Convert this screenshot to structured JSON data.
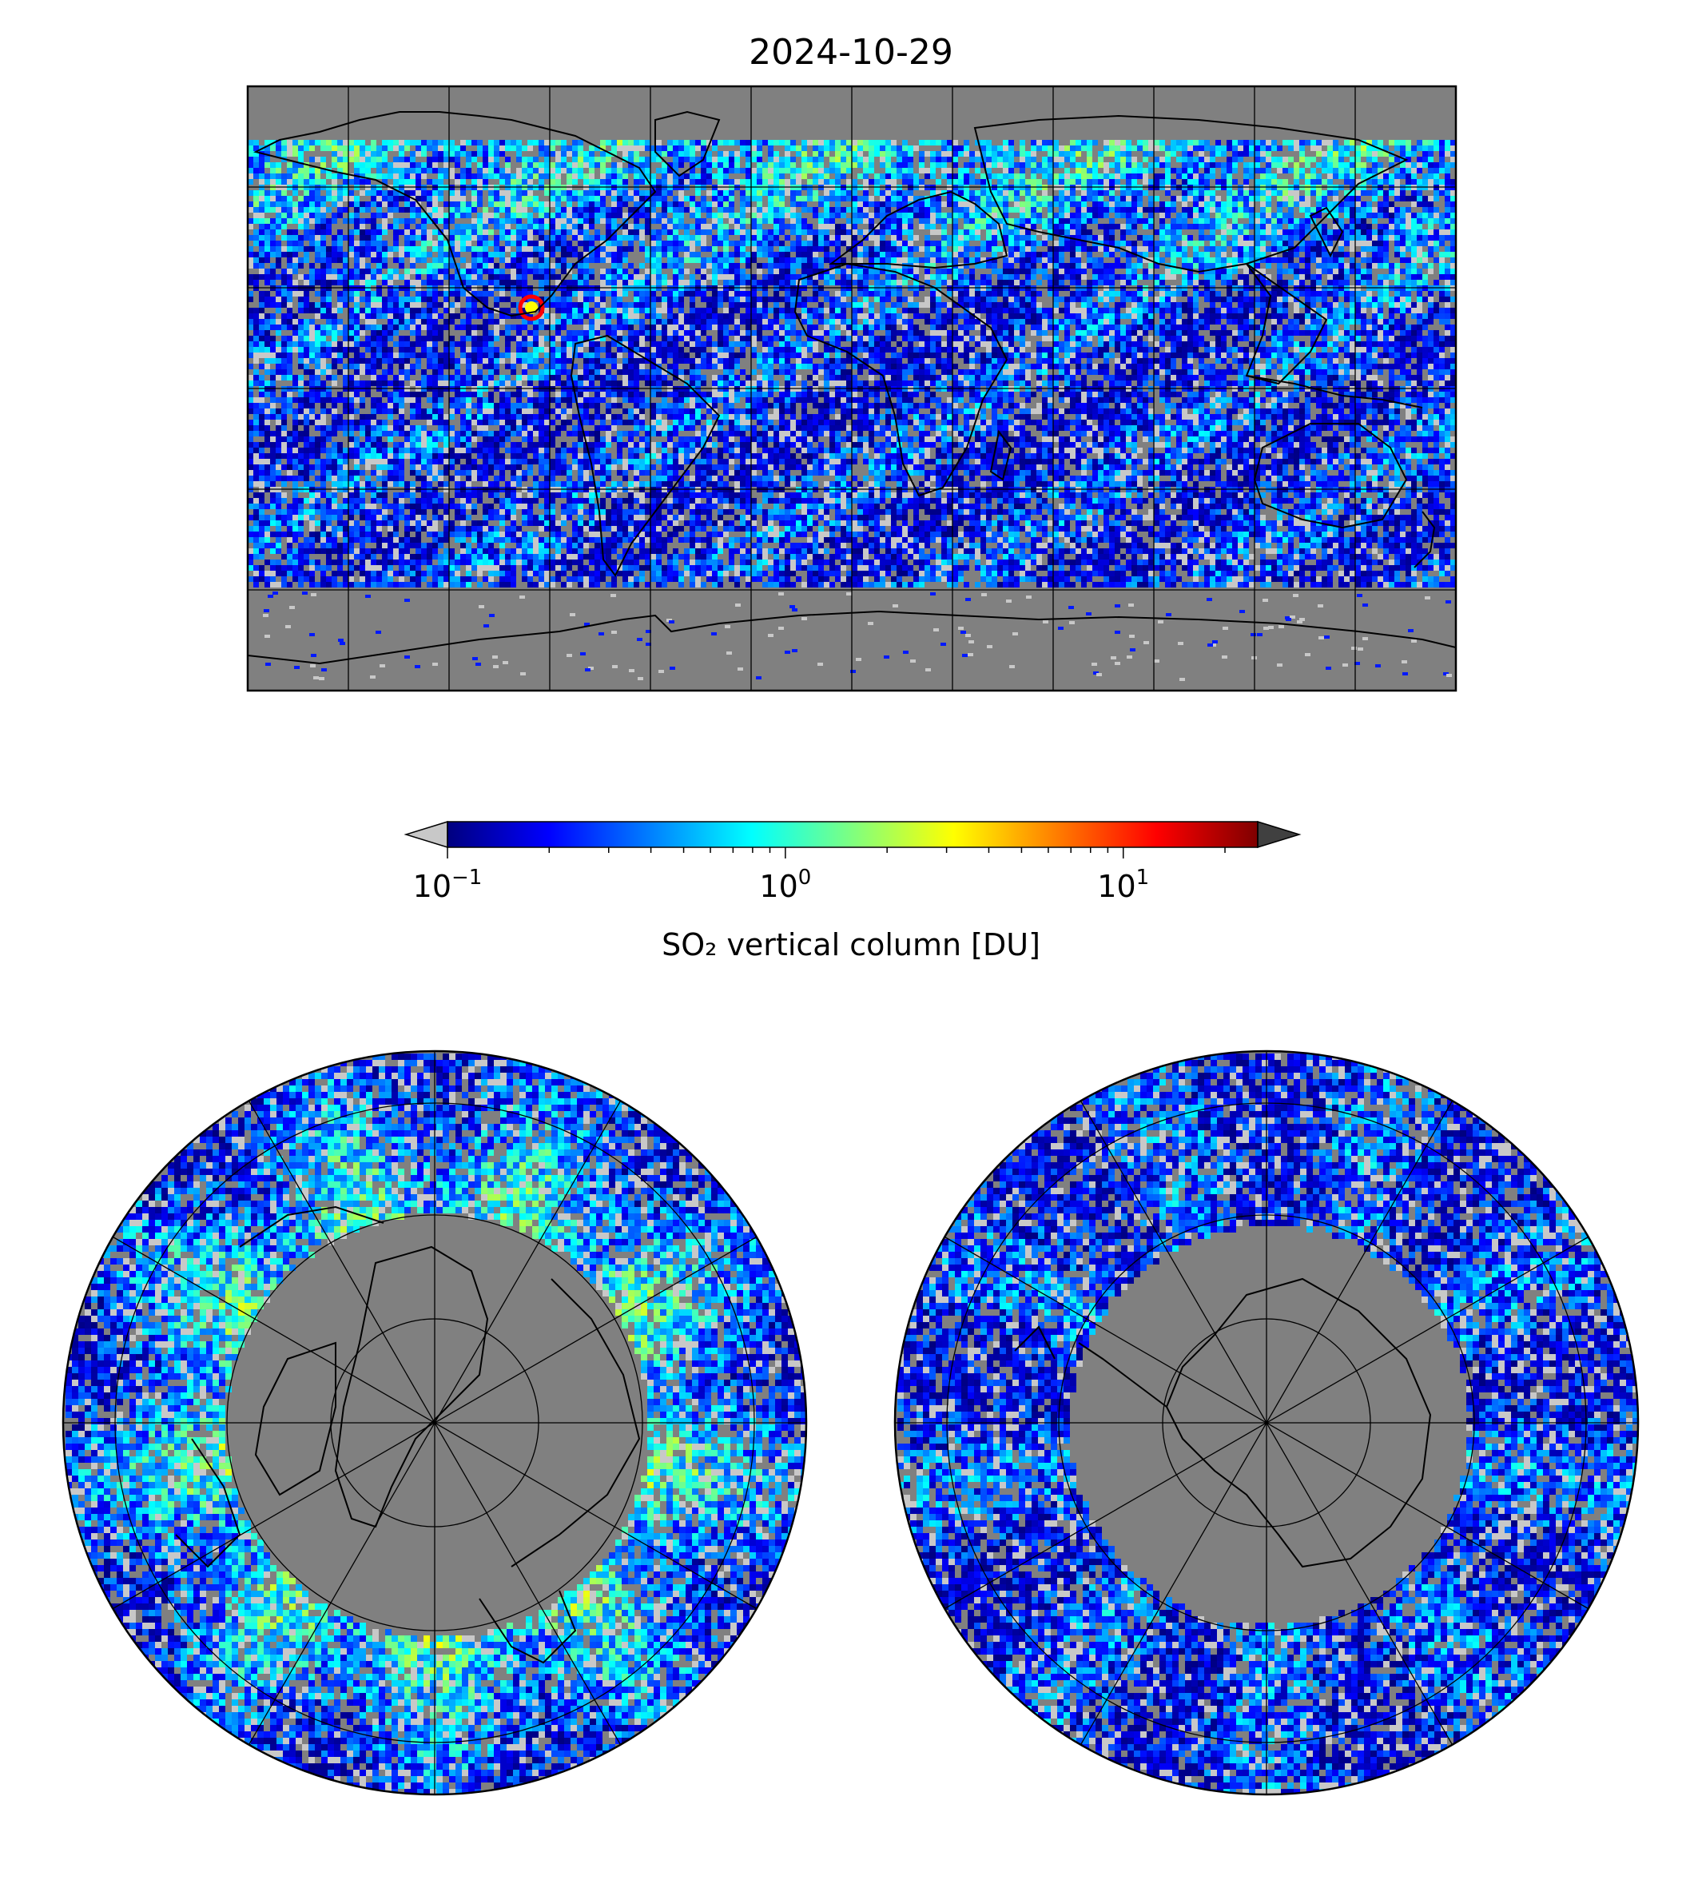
{
  "title": "2024-10-29",
  "colorbar": {
    "label": "SO₂ vertical column [DU]",
    "scale": "log",
    "vmin": 0.1,
    "vmax": 25,
    "ticks": [
      {
        "value": 0.1,
        "base": "10",
        "exp": "−1"
      },
      {
        "value": 1,
        "base": "10",
        "exp": "0"
      },
      {
        "value": 10,
        "base": "10",
        "exp": "1"
      }
    ],
    "colormap": [
      "#00007f",
      "#0000ff",
      "#007fff",
      "#00ffff",
      "#7fff7f",
      "#ffff00",
      "#ff7f00",
      "#ff0000",
      "#7f0000"
    ],
    "under_color": "#c8c8c8",
    "over_color": "#404040",
    "extend": "both"
  },
  "maps": [
    {
      "name": "global",
      "projection": "plate-carree",
      "gridlines": {
        "lon_step": 30,
        "lat_step": 30
      }
    },
    {
      "name": "north-polar",
      "projection": "north-polar-stereographic"
    },
    {
      "name": "south-polar",
      "projection": "south-polar-stereographic"
    }
  ],
  "colors": {
    "land_nodata": "#808080",
    "coastline": "#000000",
    "gridline": "#000000"
  }
}
